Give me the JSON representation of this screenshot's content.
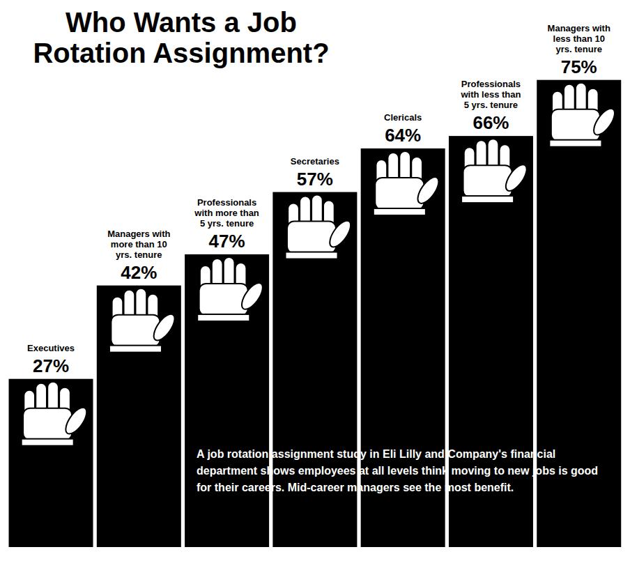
{
  "chart_data": {
    "type": "bar",
    "title": "Who Wants a Job Rotation Assignment?",
    "annotations": [
      "A job rotation assignment study in Eli Lilly and Company's financial department shows employees at all levels think moving to new jobs is good for their careers. Mid-career managers see the most benefit."
    ],
    "categories": [
      "Executives",
      "Managers with more than 10 yrs. tenure",
      "Professionals with more than 5 yrs. tenure",
      "Secretaries",
      "Clericals",
      "Professionals with less than 5 yrs. tenure",
      "Managers with less than 10 yrs. tenure"
    ],
    "values": [
      27,
      42,
      47,
      57,
      64,
      66,
      75
    ],
    "value_labels": [
      "27%",
      "42%",
      "47%",
      "57%",
      "64%",
      "66%",
      "75%"
    ],
    "data_labels": true,
    "tick_labels": false,
    "color": "#000000"
  }
}
